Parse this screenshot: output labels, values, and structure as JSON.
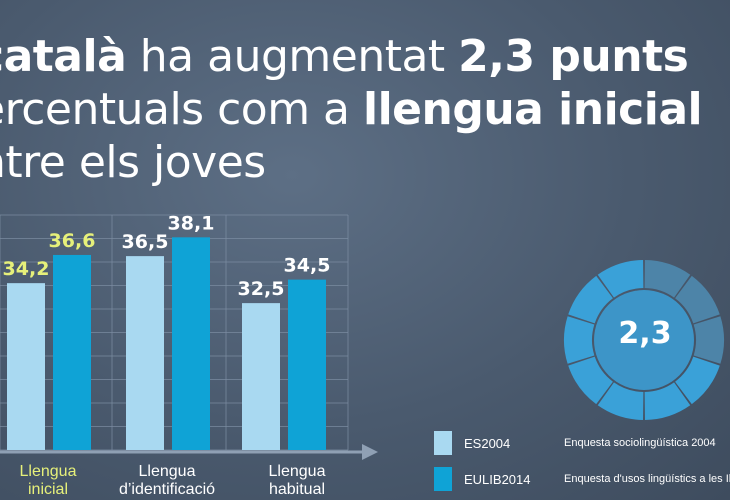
{
  "headline": {
    "l1_a": "català",
    "l1_b": " ha augmentat ",
    "l1_c": "2,3 punts",
    "l2_a": "ercentuals com a ",
    "l2_b": "llengua inicial",
    "l3": "ntre els joves"
  },
  "chart_data": {
    "type": "bar",
    "categories": [
      "Llengua inicial",
      "Llengua d'identificació",
      "Llengua habitual"
    ],
    "category_label_lines": [
      [
        "Llengua",
        "inicial"
      ],
      [
        "Llengua",
        "d’identificació"
      ],
      [
        "Llengua",
        "habitual"
      ]
    ],
    "series": [
      {
        "name": "ES2004",
        "values": [
          34.2,
          36.5,
          32.5
        ],
        "labels": [
          "34,2",
          "36,5",
          "32,5"
        ],
        "color": "#a9d9f1"
      },
      {
        "name": "EULIB2014",
        "values": [
          36.6,
          38.1,
          34.5
        ],
        "labels": [
          "36,6",
          "38,1",
          "34,5"
        ],
        "color": "#0fa3d6"
      }
    ],
    "highlight_color": "#e6f07a",
    "grid": true
  },
  "legend": [
    {
      "code": "ES2004",
      "desc": "Enquesta sociolingüística 2004",
      "color": "#a9d9f1"
    },
    {
      "code": "EULIB2014",
      "desc": "Enquesta d'usos lingüístics a les Ill",
      "color": "#0fa3d6"
    }
  ],
  "donut": {
    "value": "2,3",
    "segments": 10,
    "filled": 3
  }
}
